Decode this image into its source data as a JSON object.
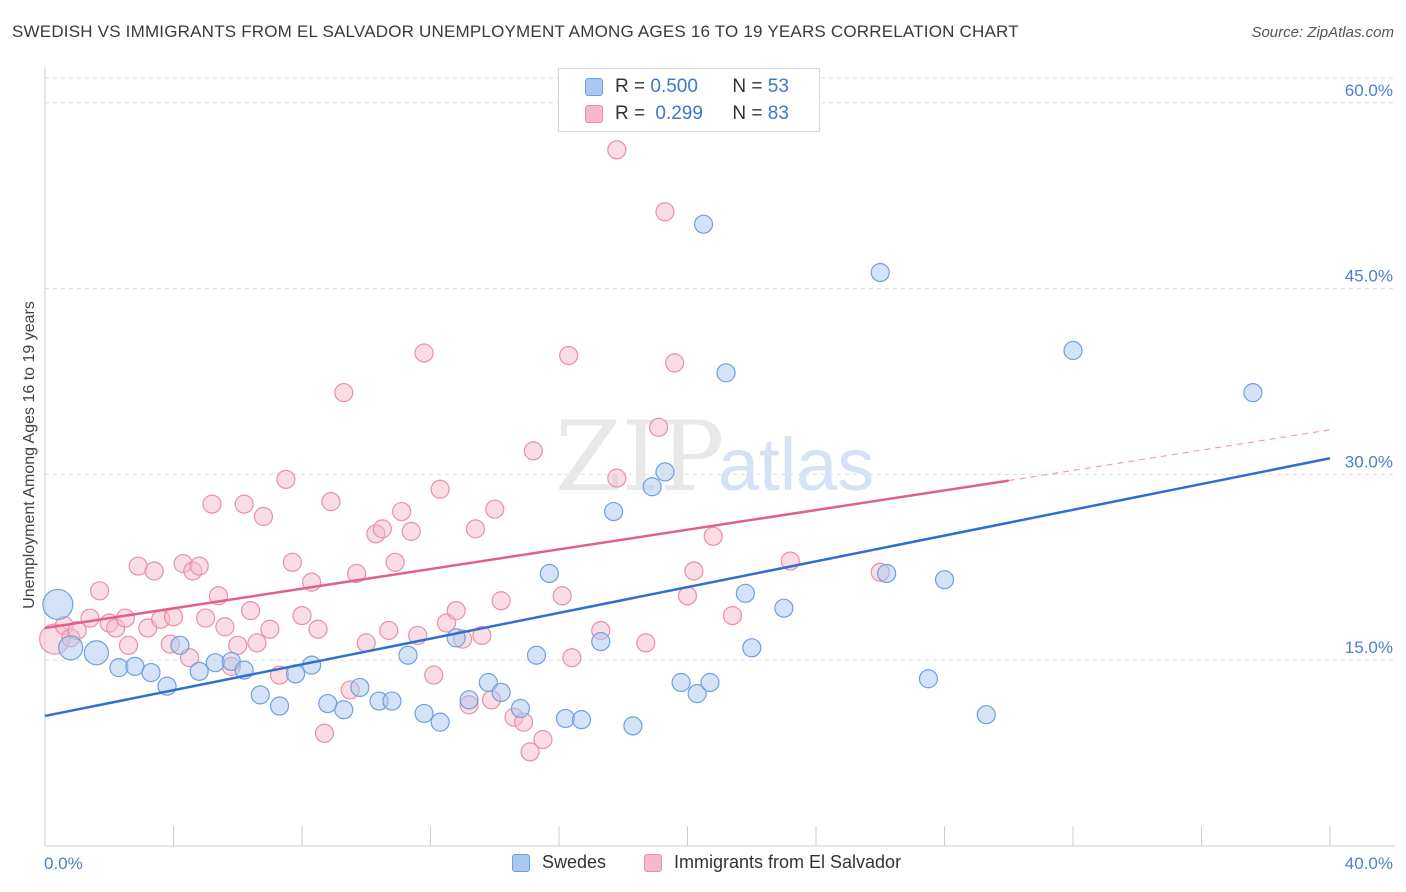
{
  "title": "SWEDISH VS IMMIGRANTS FROM EL SALVADOR UNEMPLOYMENT AMONG AGES 16 TO 19 YEARS CORRELATION CHART",
  "source": "Source: ZipAtlas.com",
  "watermark": {
    "zip": "ZIP",
    "atlas": "atlas"
  },
  "legend": {
    "rows": [
      {
        "r_label": "R =",
        "r_value": "0.500",
        "n_label": "N =",
        "n_value": "53"
      },
      {
        "r_label": "R =",
        "r_value": "0.299",
        "n_label": "N =",
        "n_value": "83"
      }
    ]
  },
  "bottom_legend": [
    "Swedes",
    "Immigrants from El Salvador"
  ],
  "colors": {
    "blue_fill": "#a9c8f0",
    "blue_stroke": "#6fa0dc",
    "blue_line": "#2f6fcf",
    "pink_fill": "#f6b9cc",
    "pink_stroke": "#e890ab",
    "pink_line": "#e0608a",
    "tick": "#4a7fcc",
    "grid": "#dddddd"
  },
  "chart_data": {
    "type": "scatter",
    "title": "SWEDISH VS IMMIGRANTS FROM EL SALVADOR UNEMPLOYMENT AMONG AGES 16 TO 19 YEARS CORRELATION CHART",
    "xlabel": "",
    "ylabel": "Unemployment Among Ages 16 to 19 years",
    "xlim": [
      0,
      40
    ],
    "ylim": [
      0,
      62
    ],
    "x_tick_labels": [
      "0.0%",
      "40.0%"
    ],
    "y_ticks": [
      15,
      30,
      45,
      60
    ],
    "y_tick_labels": [
      "15.0%",
      "30.0%",
      "45.0%",
      "60.0%"
    ],
    "grid": true,
    "legend_position": "top-center",
    "series": [
      {
        "name": "Swedes",
        "r": 0.5,
        "n": 53,
        "trend": {
          "x0": 0,
          "y0": 10.5,
          "x1": 40,
          "y1": 31.3
        },
        "points": [
          [
            0.4,
            19.5,
            "L"
          ],
          [
            0.8,
            16.0,
            "M"
          ],
          [
            1.6,
            15.6,
            "M"
          ],
          [
            2.3,
            14.4
          ],
          [
            2.8,
            14.5
          ],
          [
            3.3,
            14.0
          ],
          [
            3.8,
            12.9
          ],
          [
            4.2,
            16.2
          ],
          [
            4.8,
            14.1
          ],
          [
            5.3,
            14.8
          ],
          [
            5.8,
            14.9
          ],
          [
            6.2,
            14.2
          ],
          [
            6.7,
            12.2
          ],
          [
            7.3,
            11.3
          ],
          [
            7.8,
            13.9
          ],
          [
            8.3,
            14.6
          ],
          [
            8.8,
            11.5
          ],
          [
            9.3,
            11.0
          ],
          [
            9.8,
            12.8
          ],
          [
            10.4,
            11.7
          ],
          [
            10.8,
            11.7
          ],
          [
            11.3,
            15.4
          ],
          [
            11.8,
            10.7
          ],
          [
            12.3,
            10.0
          ],
          [
            12.8,
            16.8
          ],
          [
            13.2,
            11.8
          ],
          [
            13.8,
            13.2
          ],
          [
            14.2,
            12.4
          ],
          [
            14.8,
            11.1
          ],
          [
            15.3,
            15.4
          ],
          [
            15.7,
            22.0
          ],
          [
            16.2,
            10.3
          ],
          [
            16.7,
            10.2
          ],
          [
            17.3,
            16.5
          ],
          [
            17.7,
            27.0
          ],
          [
            18.3,
            9.7
          ],
          [
            18.9,
            29.0
          ],
          [
            19.3,
            30.2
          ],
          [
            19.8,
            13.2
          ],
          [
            20.3,
            12.3
          ],
          [
            20.7,
            13.2
          ],
          [
            20.5,
            50.2
          ],
          [
            21.2,
            38.2
          ],
          [
            21.8,
            20.4
          ],
          [
            22.0,
            16.0
          ],
          [
            23.0,
            19.2
          ],
          [
            26.0,
            46.3
          ],
          [
            26.2,
            22.0
          ],
          [
            27.5,
            13.5
          ],
          [
            28.0,
            21.5
          ],
          [
            29.3,
            10.6
          ],
          [
            32.0,
            40.0
          ],
          [
            37.6,
            36.6
          ]
        ]
      },
      {
        "name": "Immigrants from El Salvador",
        "r": 0.299,
        "n": 83,
        "trend": {
          "x0": 0,
          "y0": 17.6,
          "x1": 30,
          "y1": 29.5,
          "dash_x1": 40,
          "dash_y1": 33.6
        },
        "points": [
          [
            0.3,
            16.7,
            "L"
          ],
          [
            0.6,
            17.8
          ],
          [
            0.8,
            16.8
          ],
          [
            1.0,
            17.4
          ],
          [
            1.4,
            18.4
          ],
          [
            1.7,
            20.6
          ],
          [
            2.0,
            18.0
          ],
          [
            2.2,
            17.6
          ],
          [
            2.5,
            18.4
          ],
          [
            2.6,
            16.2
          ],
          [
            2.9,
            22.6
          ],
          [
            3.2,
            17.6
          ],
          [
            3.4,
            22.2
          ],
          [
            3.6,
            18.3
          ],
          [
            3.9,
            16.3
          ],
          [
            4.0,
            18.5
          ],
          [
            4.3,
            22.8
          ],
          [
            4.5,
            15.2
          ],
          [
            4.6,
            22.2
          ],
          [
            4.8,
            22.6
          ],
          [
            5.0,
            18.4
          ],
          [
            5.2,
            27.6
          ],
          [
            5.4,
            20.2
          ],
          [
            5.6,
            17.7
          ],
          [
            5.8,
            14.5
          ],
          [
            6.0,
            16.2
          ],
          [
            6.2,
            27.6
          ],
          [
            6.4,
            19.0
          ],
          [
            6.6,
            16.4
          ],
          [
            6.8,
            26.6
          ],
          [
            7.0,
            17.5
          ],
          [
            7.3,
            13.8
          ],
          [
            7.5,
            29.6
          ],
          [
            7.7,
            22.9
          ],
          [
            8.0,
            18.6
          ],
          [
            8.3,
            21.3
          ],
          [
            8.5,
            17.5
          ],
          [
            8.7,
            9.1
          ],
          [
            8.9,
            27.8
          ],
          [
            9.3,
            36.6
          ],
          [
            9.5,
            12.6
          ],
          [
            9.7,
            22.0
          ],
          [
            10.0,
            16.4
          ],
          [
            10.3,
            25.2
          ],
          [
            10.5,
            25.6
          ],
          [
            10.7,
            17.4
          ],
          [
            10.9,
            22.9
          ],
          [
            11.1,
            27.0
          ],
          [
            11.4,
            25.4
          ],
          [
            11.6,
            17.0
          ],
          [
            11.8,
            39.8
          ],
          [
            12.1,
            13.8
          ],
          [
            12.3,
            28.8
          ],
          [
            12.5,
            18.0
          ],
          [
            12.8,
            19.0
          ],
          [
            13.0,
            16.7
          ],
          [
            13.2,
            11.4
          ],
          [
            13.4,
            25.6
          ],
          [
            13.6,
            17.0
          ],
          [
            13.9,
            11.8
          ],
          [
            14.0,
            27.2
          ],
          [
            14.2,
            19.8
          ],
          [
            14.6,
            10.4
          ],
          [
            14.9,
            10.0
          ],
          [
            15.1,
            7.6
          ],
          [
            15.2,
            31.9
          ],
          [
            15.5,
            8.6
          ],
          [
            16.1,
            20.2
          ],
          [
            16.3,
            39.6
          ],
          [
            16.4,
            15.2
          ],
          [
            17.3,
            17.4
          ],
          [
            17.8,
            29.7
          ],
          [
            17.8,
            56.2
          ],
          [
            18.7,
            16.4
          ],
          [
            19.1,
            33.8
          ],
          [
            19.3,
            51.2
          ],
          [
            19.6,
            39.0
          ],
          [
            20.0,
            20.2
          ],
          [
            20.2,
            22.2
          ],
          [
            20.8,
            25.0
          ],
          [
            21.4,
            18.6
          ],
          [
            23.2,
            23.0
          ],
          [
            26.0,
            22.1
          ]
        ]
      }
    ]
  }
}
